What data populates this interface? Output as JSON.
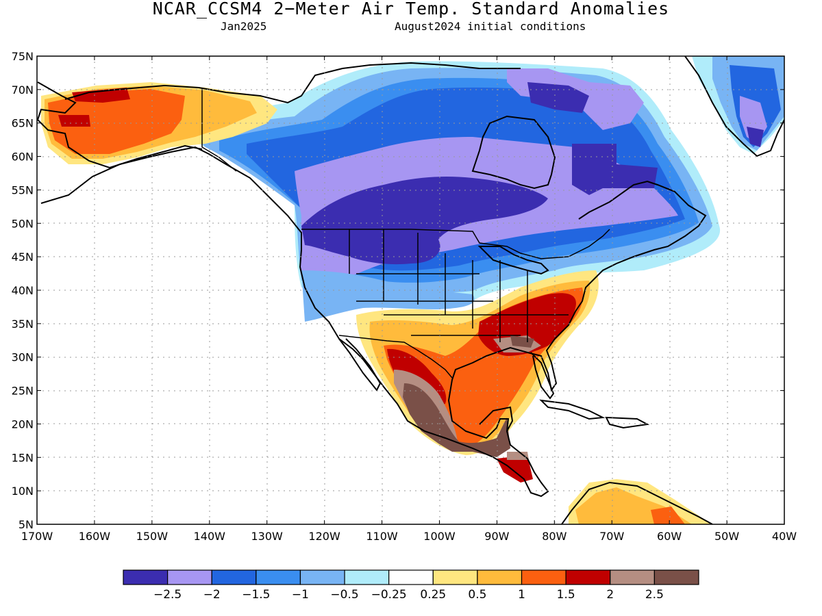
{
  "title": "NCAR_CCSM4 2−Meter Air Temp. Standard Anomalies",
  "valid_month": "Jan2025",
  "initial_conditions": "August2024 initial conditions",
  "map": {
    "lon_range": [
      -170,
      -40
    ],
    "lat_range": [
      5,
      75
    ],
    "lat_labels": [
      "75N",
      "70N",
      "65N",
      "60N",
      "55N",
      "50N",
      "45N",
      "40N",
      "35N",
      "30N",
      "25N",
      "20N",
      "15N",
      "10N",
      "5N"
    ],
    "lon_labels": [
      "170W",
      "160W",
      "150W",
      "140W",
      "130W",
      "120W",
      "110W",
      "100W",
      "90W",
      "80W",
      "70W",
      "60W",
      "50W",
      "40W"
    ]
  },
  "colorbar": {
    "colors": [
      "#3b2db0",
      "#a796f2",
      "#2266e0",
      "#3a8ef0",
      "#78b4f4",
      "#b0ecfa",
      "#ffffff",
      "#ffe680",
      "#ffbb3c",
      "#fb6010",
      "#c00000",
      "#b58e82",
      "#7a5048"
    ],
    "labels": [
      "−2.5",
      "−2",
      "−1.5",
      "−1",
      "−0.5",
      "−0.25",
      "0.25",
      "0.5",
      "1",
      "1.5",
      "2",
      "2.5"
    ]
  }
}
